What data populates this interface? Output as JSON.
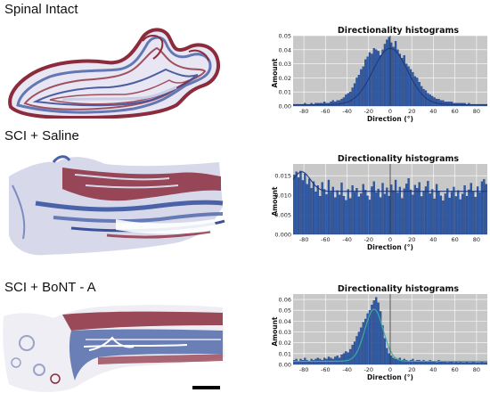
{
  "panels": [
    {
      "label": "Spinal Intact"
    },
    {
      "label": "SCI + Saline"
    },
    {
      "label": "SCI + BoNT - A"
    }
  ],
  "colors": {
    "bar": "#2f5aa5",
    "bar_edge": "#18357a",
    "fit_line": "#1f3a7a",
    "fit_line_peak": "#3bb2a0",
    "plot_bg": "#c8c8c8",
    "tissue_red": "#8b2b3c",
    "tissue_blue": "#4a63a8",
    "tissue_pale": "#c8cde4"
  },
  "chart_data": [
    {
      "type": "bar",
      "title": "Directionality histograms",
      "xlabel": "Direction (°)",
      "ylabel": "Amount",
      "xlim": [
        -90,
        90
      ],
      "ylim": [
        0,
        0.05
      ],
      "xticks": [
        "-80",
        "-60",
        "-40",
        "-20",
        "0",
        "20",
        "40",
        "60",
        "80"
      ],
      "yticks": [
        "0.00",
        "0.01",
        "0.02",
        "0.03",
        "0.04",
        "0.05"
      ],
      "grid": true,
      "fit": "gaussian",
      "x": [
        -89,
        -87,
        -85,
        -83,
        -81,
        -79,
        -77,
        -75,
        -73,
        -71,
        -69,
        -67,
        -65,
        -63,
        -61,
        -59,
        -57,
        -55,
        -53,
        -51,
        -49,
        -47,
        -45,
        -43,
        -41,
        -39,
        -37,
        -35,
        -33,
        -31,
        -29,
        -27,
        -25,
        -23,
        -21,
        -19,
        -17,
        -15,
        -13,
        -11,
        -9,
        -7,
        -5,
        -3,
        -1,
        1,
        3,
        5,
        7,
        9,
        11,
        13,
        15,
        17,
        19,
        21,
        23,
        25,
        27,
        29,
        31,
        33,
        35,
        37,
        39,
        41,
        43,
        45,
        47,
        49,
        51,
        53,
        55,
        57,
        59,
        61,
        63,
        65,
        67,
        69,
        71,
        73,
        75,
        77,
        79,
        81,
        83,
        85,
        87,
        89
      ],
      "values": [
        0.001,
        0.001,
        0.001,
        0.001,
        0.001,
        0.002,
        0.001,
        0.001,
        0.002,
        0.001,
        0.002,
        0.002,
        0.002,
        0.002,
        0.003,
        0.002,
        0.002,
        0.003,
        0.004,
        0.003,
        0.004,
        0.004,
        0.005,
        0.006,
        0.008,
        0.009,
        0.01,
        0.013,
        0.016,
        0.02,
        0.022,
        0.026,
        0.028,
        0.033,
        0.035,
        0.038,
        0.037,
        0.041,
        0.04,
        0.039,
        0.036,
        0.04,
        0.044,
        0.047,
        0.049,
        0.045,
        0.042,
        0.046,
        0.04,
        0.037,
        0.034,
        0.036,
        0.03,
        0.028,
        0.026,
        0.024,
        0.021,
        0.02,
        0.017,
        0.014,
        0.012,
        0.011,
        0.009,
        0.008,
        0.007,
        0.006,
        0.005,
        0.005,
        0.004,
        0.004,
        0.003,
        0.003,
        0.003,
        0.003,
        0.002,
        0.002,
        0.002,
        0.002,
        0.002,
        0.002,
        0.001,
        0.002,
        0.001,
        0.001,
        0.001,
        0.001,
        0.001,
        0.001,
        0.001,
        0.001
      ],
      "fit_params": {
        "amplitude": 0.04,
        "center": 0,
        "sigma": 16,
        "baseline": 0.001
      }
    },
    {
      "type": "bar",
      "title": "Directionality histograms",
      "xlabel": "Direction (°)",
      "ylabel": "Amount",
      "xlim": [
        -90,
        90
      ],
      "ylim": [
        0,
        0.018
      ],
      "xticks": [
        "-80",
        "-60",
        "-40",
        "-20",
        "0",
        "20",
        "40",
        "60",
        "80"
      ],
      "yticks": [
        "0.000",
        "0.005",
        "0.010",
        "0.015"
      ],
      "grid": true,
      "fit": "gaussian+baseline",
      "x": [
        -89,
        -87,
        -85,
        -83,
        -81,
        -79,
        -77,
        -75,
        -73,
        -71,
        -69,
        -67,
        -65,
        -63,
        -61,
        -59,
        -57,
        -55,
        -53,
        -51,
        -49,
        -47,
        -45,
        -43,
        -41,
        -39,
        -37,
        -35,
        -33,
        -31,
        -29,
        -27,
        -25,
        -23,
        -21,
        -19,
        -17,
        -15,
        -13,
        -11,
        -9,
        -7,
        -5,
        -3,
        -1,
        1,
        3,
        5,
        7,
        9,
        11,
        13,
        15,
        17,
        19,
        21,
        23,
        25,
        27,
        29,
        31,
        33,
        35,
        37,
        39,
        41,
        43,
        45,
        47,
        49,
        51,
        53,
        55,
        57,
        59,
        61,
        63,
        65,
        67,
        69,
        71,
        73,
        75,
        77,
        79,
        81,
        83,
        85,
        87,
        89
      ],
      "values": [
        0.0152,
        0.016,
        0.0145,
        0.0162,
        0.0138,
        0.0155,
        0.0128,
        0.0142,
        0.0118,
        0.0135,
        0.0109,
        0.0125,
        0.0098,
        0.0133,
        0.0115,
        0.0102,
        0.0139,
        0.0108,
        0.0121,
        0.0094,
        0.0112,
        0.0101,
        0.0132,
        0.0098,
        0.0087,
        0.0115,
        0.0092,
        0.0125,
        0.0108,
        0.0118,
        0.0096,
        0.0104,
        0.0128,
        0.0113,
        0.0099,
        0.0088,
        0.0122,
        0.0135,
        0.0107,
        0.0116,
        0.0094,
        0.0131,
        0.0103,
        0.0119,
        0.0098,
        0.0127,
        0.0112,
        0.0139,
        0.0106,
        0.0121,
        0.0092,
        0.0117,
        0.0129,
        0.0143,
        0.0114,
        0.0101,
        0.0126,
        0.0118,
        0.0133,
        0.0097,
        0.0109,
        0.0122,
        0.0136,
        0.0104,
        0.0115,
        0.0091,
        0.0128,
        0.0111,
        0.0099,
        0.0086,
        0.0104,
        0.0117,
        0.0093,
        0.0108,
        0.0121,
        0.0097,
        0.0112,
        0.0089,
        0.0103,
        0.0125,
        0.0098,
        0.0114,
        0.0131,
        0.0109,
        0.0095,
        0.0122,
        0.0107,
        0.0135,
        0.0141,
        0.0128
      ],
      "fit_params": {
        "amplitude": 0.005,
        "center": -82,
        "sigma": 8,
        "baseline": 0.011
      }
    },
    {
      "type": "bar",
      "title": "Directionality histograms",
      "xlabel": "Direction (°)",
      "ylabel": "Amount",
      "xlim": [
        -90,
        90
      ],
      "ylim": [
        0,
        0.065
      ],
      "xticks": [
        "-80",
        "-60",
        "-40",
        "-20",
        "0",
        "20",
        "40",
        "60",
        "80"
      ],
      "yticks": [
        "0.00",
        "0.01",
        "0.02",
        "0.03",
        "0.04",
        "0.05",
        "0.06"
      ],
      "grid": true,
      "fit": "gaussian",
      "x": [
        -89,
        -87,
        -85,
        -83,
        -81,
        -79,
        -77,
        -75,
        -73,
        -71,
        -69,
        -67,
        -65,
        -63,
        -61,
        -59,
        -57,
        -55,
        -53,
        -51,
        -49,
        -47,
        -45,
        -43,
        -41,
        -39,
        -37,
        -35,
        -33,
        -31,
        -29,
        -27,
        -25,
        -23,
        -21,
        -19,
        -17,
        -15,
        -13,
        -11,
        -9,
        -7,
        -5,
        -3,
        -1,
        1,
        3,
        5,
        7,
        9,
        11,
        13,
        15,
        17,
        19,
        21,
        23,
        25,
        27,
        29,
        31,
        33,
        35,
        37,
        39,
        41,
        43,
        45,
        47,
        49,
        51,
        53,
        55,
        57,
        59,
        61,
        63,
        65,
        67,
        69,
        71,
        73,
        75,
        77,
        79,
        81,
        83,
        85,
        87,
        89
      ],
      "values": [
        0.004,
        0.005,
        0.003,
        0.005,
        0.004,
        0.006,
        0.004,
        0.003,
        0.005,
        0.004,
        0.005,
        0.006,
        0.005,
        0.004,
        0.006,
        0.005,
        0.007,
        0.006,
        0.005,
        0.007,
        0.008,
        0.006,
        0.009,
        0.01,
        0.012,
        0.011,
        0.014,
        0.018,
        0.021,
        0.026,
        0.03,
        0.034,
        0.039,
        0.042,
        0.047,
        0.05,
        0.055,
        0.059,
        0.062,
        0.057,
        0.049,
        0.036,
        0.024,
        0.015,
        0.01,
        0.008,
        0.006,
        0.005,
        0.005,
        0.006,
        0.004,
        0.005,
        0.004,
        0.003,
        0.004,
        0.005,
        0.003,
        0.004,
        0.004,
        0.003,
        0.004,
        0.003,
        0.003,
        0.004,
        0.003,
        0.003,
        0.002,
        0.004,
        0.003,
        0.003,
        0.003,
        0.002,
        0.003,
        0.003,
        0.002,
        0.003,
        0.002,
        0.003,
        0.002,
        0.002,
        0.003,
        0.002,
        0.002,
        0.003,
        0.002,
        0.002,
        0.002,
        0.003,
        0.002,
        0.002
      ],
      "fit_params": {
        "amplitude": 0.048,
        "center": -15,
        "sigma": 8.5,
        "baseline": 0.003
      }
    }
  ]
}
